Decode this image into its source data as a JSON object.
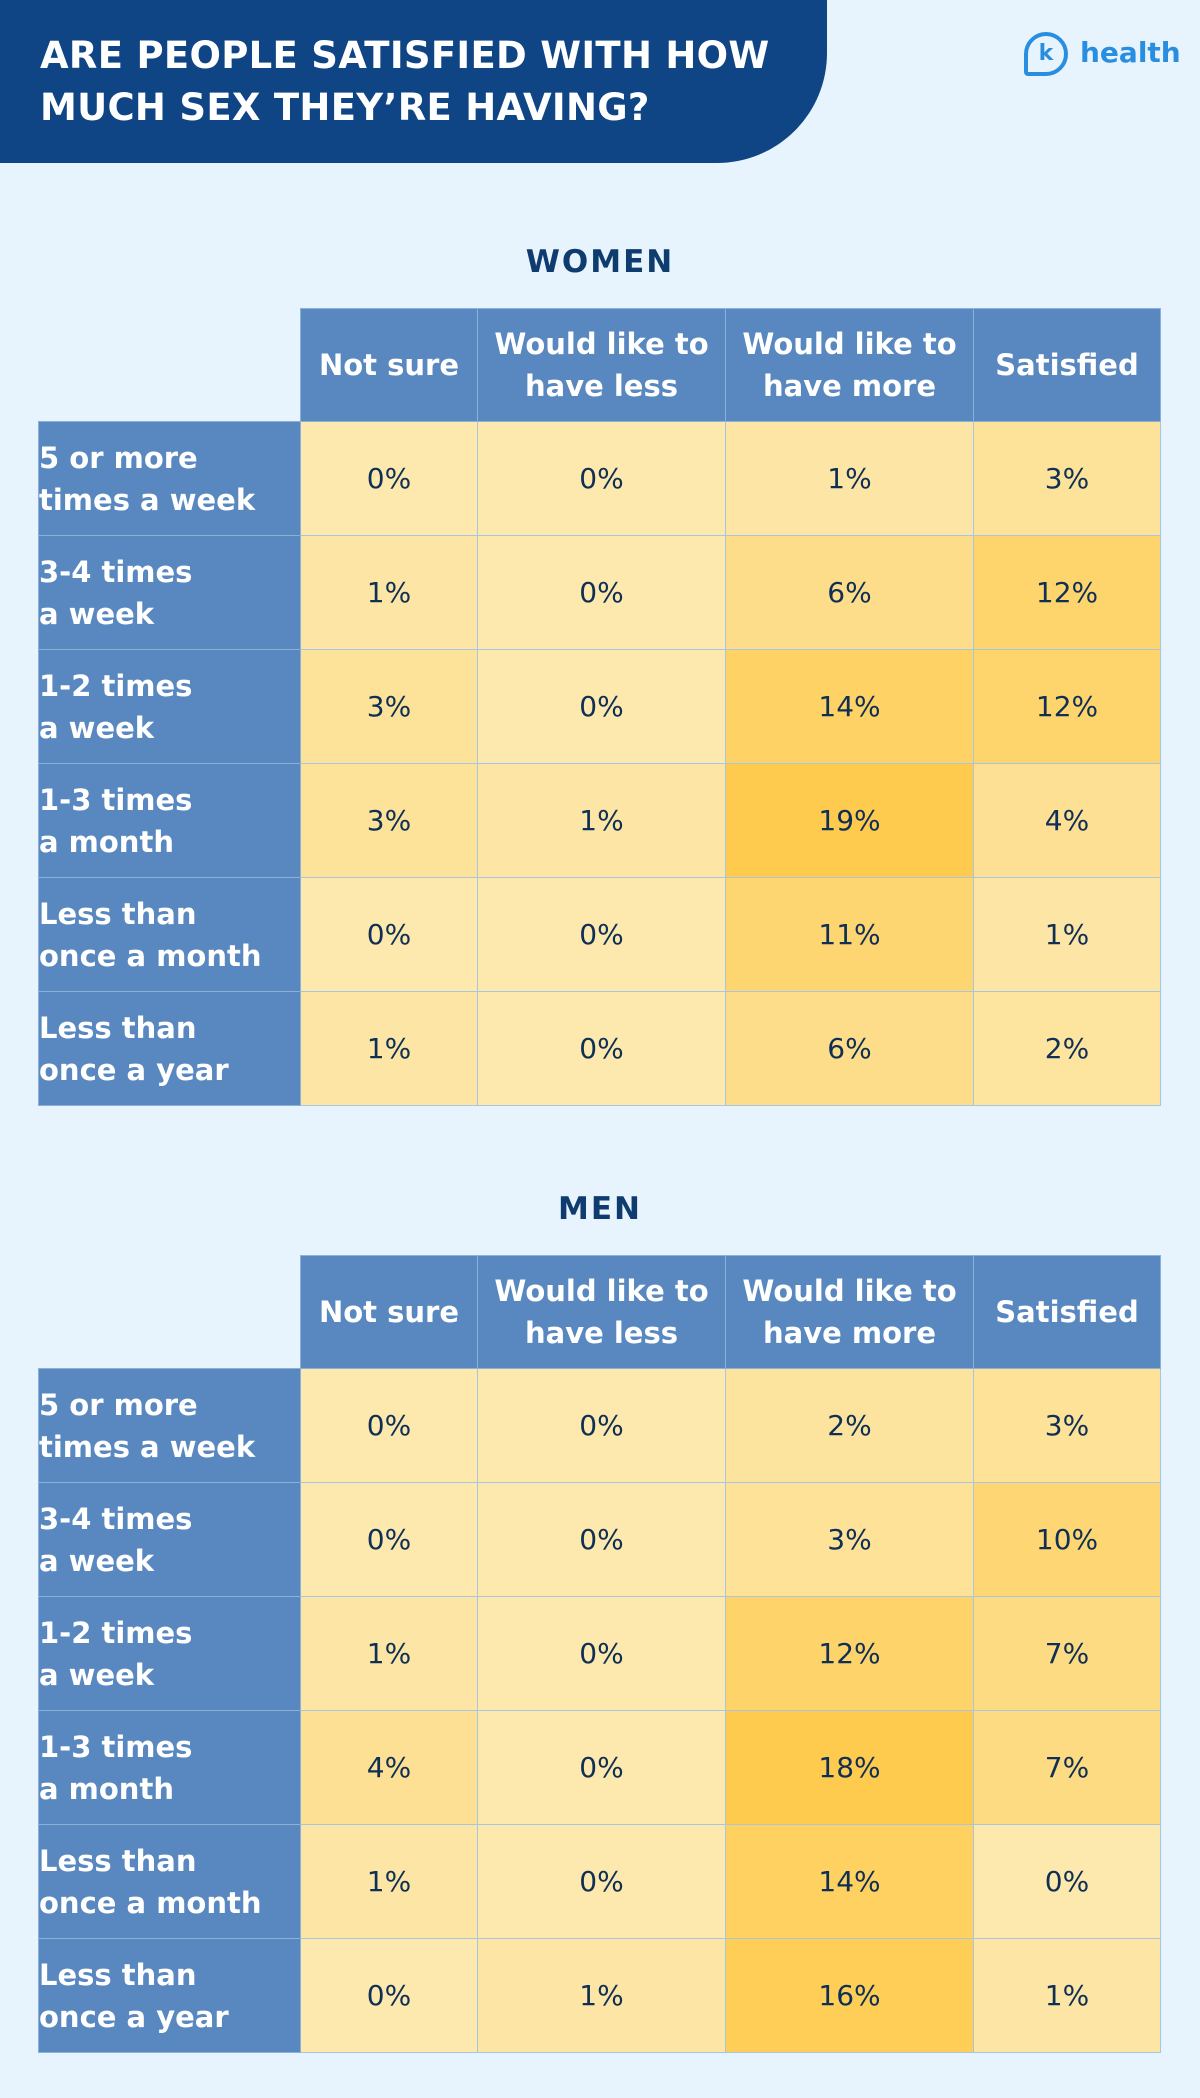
{
  "header": {
    "title_lines": [
      "ARE PEOPLE SATISFIED WITH HOW",
      "MUCH SEX THEY’RE HAVING?"
    ],
    "logo_mark": "k",
    "logo_word": "health"
  },
  "colors": {
    "banner": "#0f4584",
    "header_cell": "#5888bf",
    "background": "#e8f4fd",
    "scale_low": "#fde8ad",
    "scale_high": "#fecb4e"
  },
  "chart_data": [
    {
      "type": "heatmap",
      "title": "WOMEN",
      "columns": [
        "Not sure",
        "Would like to\nhave less",
        "Would like to\nhave more",
        "Satisfied"
      ],
      "rows": [
        "5 or more\ntimes a week",
        "3-4 times\na week",
        "1-2 times\na week",
        "1-3 times\na month",
        "Less than\nonce a month",
        "Less than\nonce a year"
      ],
      "values": [
        [
          0,
          0,
          1,
          3
        ],
        [
          1,
          0,
          6,
          12
        ],
        [
          3,
          0,
          14,
          12
        ],
        [
          3,
          1,
          19,
          4
        ],
        [
          0,
          0,
          11,
          1
        ],
        [
          1,
          0,
          6,
          2
        ]
      ],
      "unit": "%"
    },
    {
      "type": "heatmap",
      "title": "MEN",
      "columns": [
        "Not sure",
        "Would like to\nhave less",
        "Would like to\nhave more",
        "Satisfied"
      ],
      "rows": [
        "5 or more\ntimes a week",
        "3-4 times\na week",
        "1-2 times\na week",
        "1-3 times\na month",
        "Less than\nonce a month",
        "Less than\nonce a year"
      ],
      "values": [
        [
          0,
          0,
          2,
          3
        ],
        [
          0,
          0,
          3,
          10
        ],
        [
          1,
          0,
          12,
          7
        ],
        [
          4,
          0,
          18,
          7
        ],
        [
          1,
          0,
          14,
          0
        ],
        [
          0,
          1,
          16,
          1
        ]
      ],
      "unit": "%"
    }
  ]
}
